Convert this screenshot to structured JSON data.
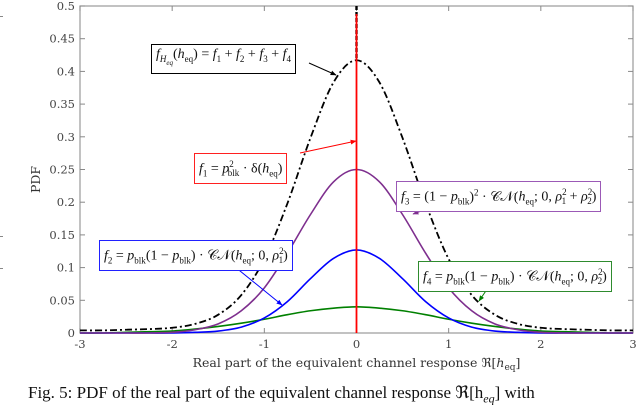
{
  "chart_data": {
    "type": "line",
    "title": "",
    "xlabel": "Real part of the equivalent channel response ℜ[h_eq]",
    "ylabel": "PDF",
    "xlim": [
      -3,
      3
    ],
    "ylim": [
      0,
      0.5
    ],
    "grid": false,
    "x_ticks": [
      "-3",
      "-2",
      "-1",
      "0",
      "1",
      "2",
      "3"
    ],
    "y_ticks": [
      "0",
      "0.05",
      "0.1",
      "0.15",
      "0.2",
      "0.25",
      "0.3",
      "0.35",
      "0.4",
      "0.45",
      "0.5"
    ],
    "x": [
      -3,
      -2.75,
      -2.5,
      -2.25,
      -2,
      -1.75,
      -1.5,
      -1.25,
      -1,
      -0.75,
      -0.5,
      -0.25,
      0,
      0.25,
      0.5,
      0.75,
      1,
      1.25,
      1.5,
      1.75,
      2,
      2.25,
      2.5,
      2.75,
      3
    ],
    "series": [
      {
        "name": "f_Heq(h_eq) = f1 + f2 + f3 + f4",
        "color": "#000000",
        "style": "dash-dot",
        "values": [
          0.004,
          0.004,
          0.005,
          0.006,
          0.008,
          0.014,
          0.028,
          0.058,
          0.113,
          0.198,
          0.298,
          0.383,
          0.417,
          0.383,
          0.298,
          0.198,
          0.113,
          0.058,
          0.028,
          0.014,
          0.008,
          0.006,
          0.005,
          0.004,
          0.004
        ],
        "delta_at_zero": true
      },
      {
        "name": "f1 = p_blk^2 · δ(h_eq)",
        "color": "#ff0000",
        "style": "solid",
        "impulse_at": 0
      },
      {
        "name": "f2 = p_blk(1 − p_blk) · CN(h_eq; 0, ρ1^2)",
        "color": "#0000ff",
        "style": "solid",
        "values": [
          0,
          0,
          0,
          0,
          0,
          0.001,
          0.003,
          0.009,
          0.023,
          0.048,
          0.083,
          0.114,
          0.127,
          0.114,
          0.083,
          0.048,
          0.023,
          0.009,
          0.003,
          0.001,
          0,
          0,
          0,
          0,
          0
        ]
      },
      {
        "name": "f3 = (1 − p_blk)^2 · CN(h_eq; 0, ρ1^2 + ρ2^2)",
        "color": "#7e2f8e",
        "style": "solid",
        "values": [
          0,
          0,
          0,
          0,
          0.001,
          0.005,
          0.014,
          0.034,
          0.069,
          0.122,
          0.181,
          0.231,
          0.25,
          0.231,
          0.181,
          0.122,
          0.069,
          0.034,
          0.014,
          0.005,
          0.001,
          0,
          0,
          0,
          0
        ]
      },
      {
        "name": "f4 = p_blk(1 − p_blk) · CN(h_eq; 0, ρ2^2)",
        "color": "#008000",
        "style": "solid",
        "values": [
          0,
          0,
          0.001,
          0.002,
          0.003,
          0.006,
          0.01,
          0.015,
          0.021,
          0.028,
          0.034,
          0.038,
          0.04,
          0.038,
          0.034,
          0.028,
          0.021,
          0.015,
          0.01,
          0.006,
          0.003,
          0.002,
          0.001,
          0,
          0
        ]
      }
    ],
    "annotations": [
      {
        "id": "sum",
        "text": "f_{H_eq}(h_eq) = f_1 + f_2 + f_3 + f_4",
        "box_color": "#000000"
      },
      {
        "id": "f1",
        "text": "f_1 = p_blk^2 · δ(h_eq)",
        "box_color": "#ff0000"
      },
      {
        "id": "f2",
        "text": "f_2 = p_blk(1 − p_blk) · 𝒞𝒩(h_eq; 0, ρ_1^2)",
        "box_color": "#0000ff"
      },
      {
        "id": "f3",
        "text": "f_3 = (1 − p_blk)^2 · 𝒞𝒩(h_eq; 0, ρ_1^2 + ρ_2^2)",
        "box_color": "#7e2f8e"
      },
      {
        "id": "f4",
        "text": "f_4 = p_blk(1 − p_blk) · 𝒞𝒩(h_eq; 0, ρ_2^2)",
        "box_color": "#008000"
      }
    ]
  },
  "labels": {
    "ylabel": "PDF",
    "xlabel_prefix": "Real part of the equivalent channel response ℜ[",
    "xlabel_var": "h",
    "xlabel_sub": "eq",
    "xlabel_suffix": "]"
  },
  "caption": {
    "text": "Fig. 5: PDF of the real part of the equivalent channel response ℜ[h",
    "sub": "eq",
    "tail": "] with"
  }
}
